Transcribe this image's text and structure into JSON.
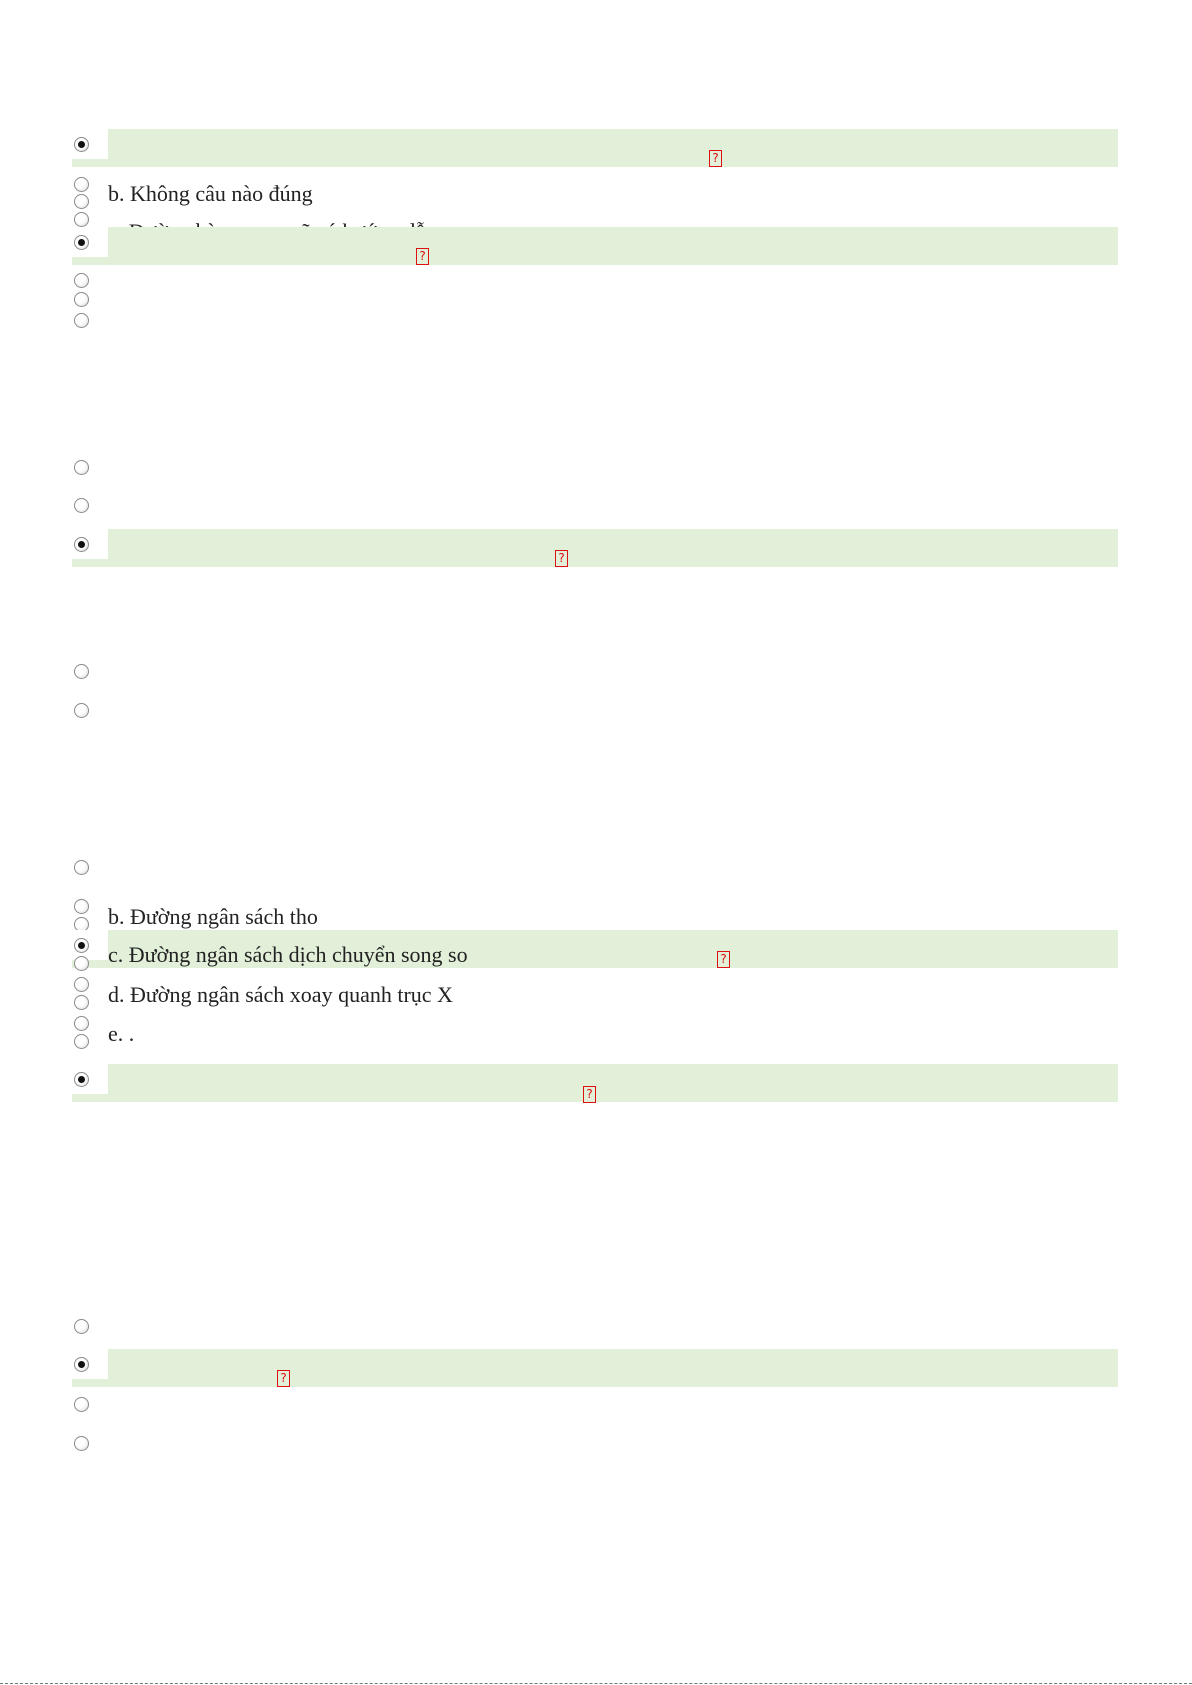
{
  "options": {
    "q1_b": "b. Không câu nào đúng",
    "q1_c_partial": "c. Đường bàng quan sẽ có hướng dẫn",
    "q4_b": "b. Đường ngân sách tho",
    "q4_c": "c. Đường ngân sách dịch chuyển song so",
    "q4_d": "d. Đường ngân sách xoay quanh trục X",
    "q4_e": "e. ."
  },
  "marker_glyph": "?",
  "colors": {
    "highlight": "#e2efd9",
    "marker": "#dd1111"
  }
}
